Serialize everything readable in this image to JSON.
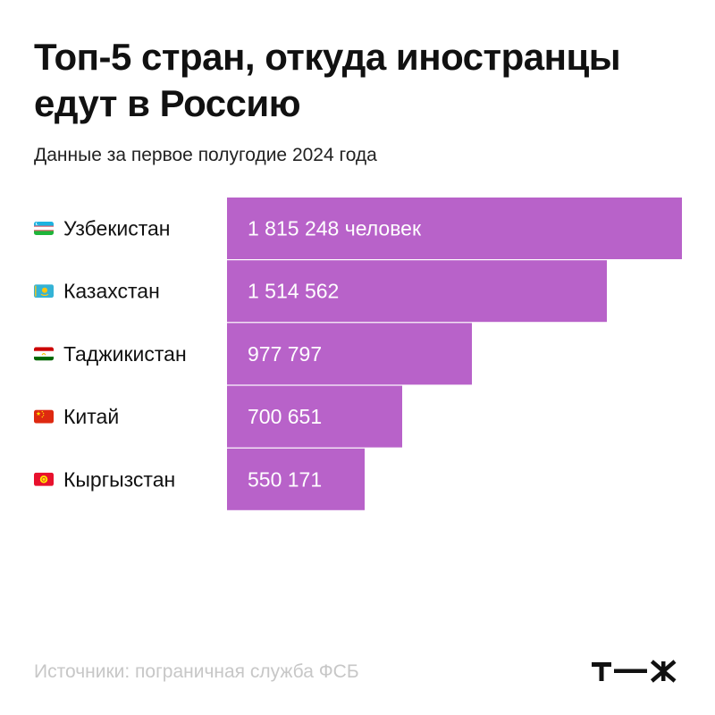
{
  "title": "Топ-5 стран, откуда иностранцы едут в Россию",
  "subtitle": "Данные за первое полугодие 2024 года",
  "source": "Источники: пограничная служба ФСБ",
  "logo_text": "т—ж",
  "colors": {
    "bar": "#b862c9",
    "bar_text": "#ffffff",
    "label_text": "#111111",
    "source_text": "#c7c7c7"
  },
  "chart_data": {
    "type": "bar",
    "orientation": "horizontal",
    "title": "Топ-5 стран, откуда иностранцы едут в Россию",
    "subtitle": "Данные за первое полугодие 2024 года",
    "xlabel": "",
    "ylabel": "",
    "grid": false,
    "categories": [
      "Узбекистан",
      "Казахстан",
      "Таджикистан",
      "Китай",
      "Кыргызстан"
    ],
    "flags": [
      "uzbekistan-flag",
      "kazakhstan-flag",
      "tajikistan-flag",
      "china-flag",
      "kyrgyzstan-flag"
    ],
    "values": [
      1815248,
      1514562,
      977797,
      700651,
      550171
    ],
    "value_labels": [
      "1 815 248 человек",
      "1 514 562",
      "977 797",
      "700 651",
      "550 171"
    ],
    "xlim": [
      0,
      1815248
    ]
  }
}
